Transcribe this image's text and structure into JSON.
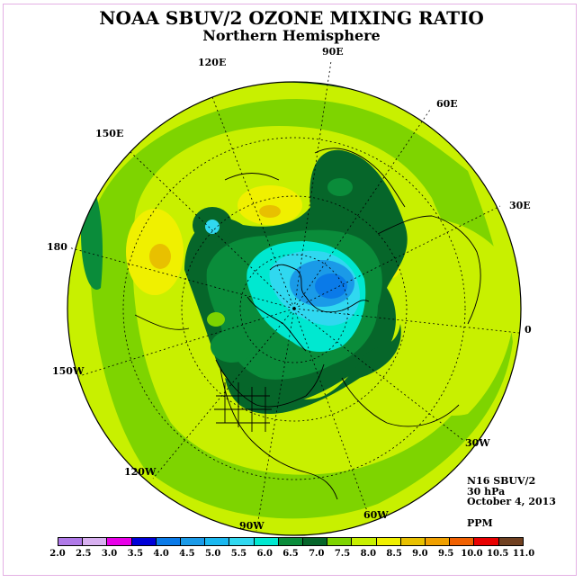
{
  "title": "NOAA SBUV/2 OZONE MIXING RATIO",
  "subtitle": "Northern Hemisphere",
  "longitude_labels": {
    "lon_90e": "90E",
    "lon_60e": "60E",
    "lon_30e": "30E",
    "lon_0": "0",
    "lon_30w": "30W",
    "lon_60w": "60W",
    "lon_90w": "90W",
    "lon_120w": "120W",
    "lon_150w": "150W",
    "lon_180": "180",
    "lon_150e": "150E",
    "lon_120e": "120E"
  },
  "info": {
    "instrument": "N16 SBUV/2",
    "level": "30 hPa",
    "date": "October 4, 2013",
    "units": "PPM"
  },
  "colorbar": {
    "ticks": [
      "2.0",
      "2.5",
      "3.0",
      "3.5",
      "4.0",
      "4.5",
      "5.0",
      "5.5",
      "6.0",
      "6.5",
      "7.0",
      "7.5",
      "8.0",
      "8.5",
      "9.0",
      "9.5",
      "10.0",
      "10.5",
      "11.0"
    ],
    "colors": [
      "#b07ae8",
      "#d8b0f0",
      "#e800e8",
      "#0000d8",
      "#0a7ae8",
      "#1a9ae8",
      "#1ab8f0",
      "#30d8f0",
      "#00e8d0",
      "#0a8c3a",
      "#06662a",
      "#7ed400",
      "#c8f000",
      "#f0f000",
      "#e8c000",
      "#f0a000",
      "#f06000",
      "#e80000",
      "#704020"
    ]
  }
}
